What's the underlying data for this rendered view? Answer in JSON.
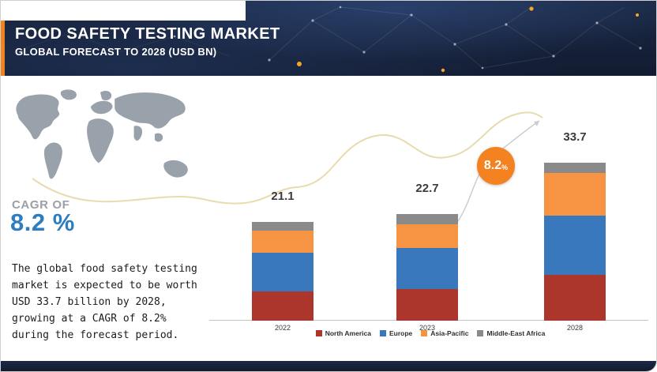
{
  "header": {
    "title": "FOOD SAFETY TESTING MARKET",
    "subtitle": "GLOBAL FORECAST TO 2028 (USD BN)"
  },
  "sidebar": {
    "cagr_label": "CAGR OF",
    "cagr_value": "8.2 %",
    "description": "The global food safety testing market is expected to be worth USD 33.7 billion by 2028, growing at a CAGR of 8.2% during the forecast period."
  },
  "growth_badge": {
    "value": "8.2",
    "unit": "%"
  },
  "chart_data": {
    "type": "bar",
    "stacked": true,
    "unit": "USD BN",
    "title": "FOOD SAFETY TESTING MARKET — GLOBAL FORECAST TO 2028 (USD BN)",
    "categories": [
      "2022",
      "2023",
      "2028"
    ],
    "totals": [
      21.1,
      22.7,
      33.7
    ],
    "series": [
      {
        "name": "North America",
        "color": "#ac352c",
        "values": [
          6.3,
          6.7,
          9.8
        ]
      },
      {
        "name": "Europe",
        "color": "#3a78be",
        "values": [
          8.2,
          8.8,
          12.6
        ]
      },
      {
        "name": "Asia-Pacific",
        "color": "#f79443",
        "values": [
          4.7,
          5.0,
          9.1
        ]
      },
      {
        "name": "Middle-East Africa",
        "color": "#8a8a8a",
        "values": [
          1.9,
          2.2,
          2.2
        ]
      }
    ],
    "cagr_annotation": "8.2%",
    "legend_position": "bottom",
    "xlabel": "",
    "ylabel": "",
    "ylim": [
      0,
      35
    ],
    "grid": false
  },
  "colors": {
    "header_navy": "#16233c",
    "accent_orange": "#f0831e",
    "cagr_blue": "#2d7dc1",
    "map_gray": "#99a1aa",
    "badge_orange": "#f58220",
    "axis_gray": "#c6c6c6"
  }
}
